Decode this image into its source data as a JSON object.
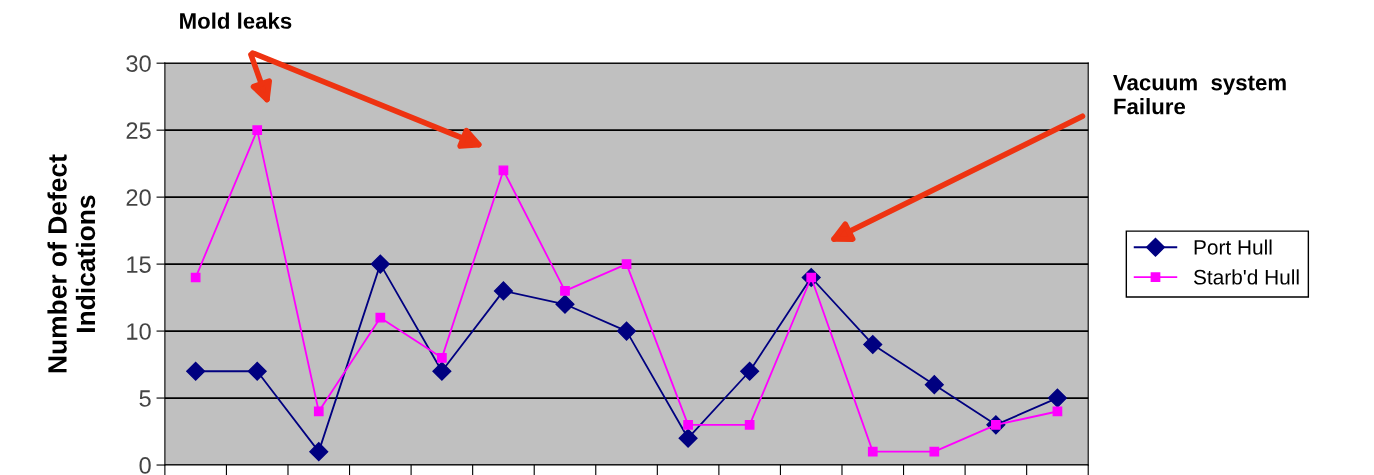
{
  "chart_data": {
    "type": "line",
    "ylabel": "Number of Defect\nIndications",
    "categories": [
      null,
      null,
      null,
      null,
      null,
      null,
      null,
      null,
      null,
      null,
      null,
      null,
      null,
      null,
      null
    ],
    "series": [
      {
        "name": "Port Hull",
        "color": "#000080",
        "marker": "diamond",
        "values": [
          7,
          7,
          1,
          15,
          7,
          13,
          12,
          10,
          2,
          7,
          14,
          9,
          6,
          3,
          5
        ]
      },
      {
        "name": "Starb'd Hull",
        "color": "#ff00ff",
        "marker": "square",
        "values": [
          14,
          25,
          4,
          11,
          8,
          22,
          13,
          15,
          3,
          3,
          14,
          1,
          1,
          3,
          4
        ]
      }
    ],
    "ylim": [
      0,
      30
    ],
    "yticks": [
      0,
      5,
      10,
      15,
      20,
      25,
      30
    ],
    "grid": "y",
    "legend": "right",
    "line_style": "solid",
    "annotations": [
      "Mold leaks",
      "Vacuum  system\nFailure"
    ]
  }
}
